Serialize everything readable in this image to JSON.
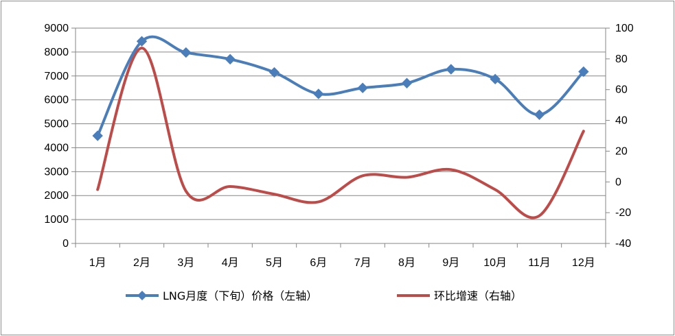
{
  "chart_data": {
    "type": "line",
    "categories": [
      "1月",
      "2月",
      "3月",
      "4月",
      "5月",
      "6月",
      "7月",
      "8月",
      "9月",
      "10月",
      "11月",
      "12月"
    ],
    "series": [
      {
        "name": "LNG月度（下旬）价格（左轴）",
        "axis": "left",
        "color": "#4a7ebb",
        "marker": "diamond",
        "values": [
          4500,
          8450,
          7980,
          7700,
          7150,
          6250,
          6500,
          6700,
          7280,
          6870,
          5380,
          7180
        ]
      },
      {
        "name": "环比增速（右轴）",
        "axis": "right",
        "color": "#be4b48",
        "marker": "none",
        "values": [
          -5,
          87,
          -6,
          -3,
          -8,
          -13,
          4,
          3,
          8,
          -5,
          -22,
          33
        ]
      }
    ],
    "y_left": {
      "min": 0,
      "max": 9000,
      "step": 1000,
      "ticks": [
        "0",
        "1000",
        "2000",
        "3000",
        "4000",
        "5000",
        "6000",
        "7000",
        "8000",
        "9000"
      ]
    },
    "y_right": {
      "min": -40,
      "max": 100,
      "step": 20,
      "ticks": [
        "-40",
        "-20",
        "0",
        "20",
        "40",
        "60",
        "80",
        "100"
      ]
    },
    "grid": "horizontal",
    "legend_position": "bottom",
    "smooth": true
  }
}
